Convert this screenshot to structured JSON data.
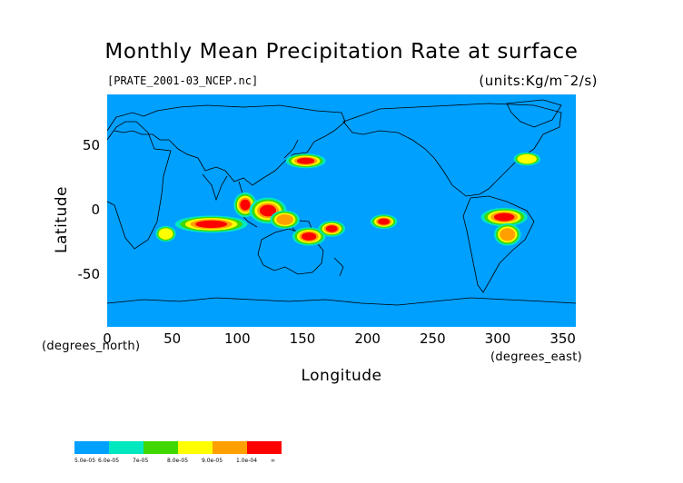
{
  "map": {
    "title": "Monthly Mean Precipitation Rate at surface",
    "source_file": "[PRATE_2001-03_NCEP.nc]",
    "units": "(units:Kg/m¯2/s)",
    "y_axis": {
      "label": "Latitude",
      "unit_note": "(degrees_north)",
      "ticks": [
        "50",
        "0",
        "-50"
      ],
      "tick_values": [
        50,
        0,
        -50
      ],
      "range": [
        -90,
        90
      ]
    },
    "x_axis": {
      "label": "Longitude",
      "unit_note": "(degrees_east)",
      "ticks": [
        "0",
        "50",
        "100",
        "150",
        "200",
        "250",
        "300",
        "350"
      ],
      "tick_values": [
        0,
        50,
        100,
        150,
        200,
        250,
        300,
        350
      ],
      "range": [
        0,
        360
      ]
    },
    "background_color": "#00a0ff",
    "coastline_color": "#000000"
  },
  "chart_data": {
    "type": "heatmap",
    "title": "Monthly Mean Precipitation Rate at surface",
    "xlabel": "Longitude",
    "ylabel": "Latitude",
    "xlim": [
      0,
      360
    ],
    "ylim": [
      -90,
      90
    ],
    "colorbar": {
      "labels": [
        "5.0e-05",
        "6.0e-05",
        "7e-05",
        "8.0e-05",
        "9.0e-05",
        "1.0e-04",
        "∞"
      ],
      "colors": [
        "#00a0ff",
        "#00e8c0",
        "#40d800",
        "#ffff00",
        "#ffa000",
        "#ff0000"
      ]
    },
    "high_precip_regions": [
      {
        "lon": [
          40,
          50
        ],
        "lat": [
          -22,
          -14
        ],
        "level": 3
      },
      {
        "lon": [
          55,
          105
        ],
        "lat": [
          -15,
          -6
        ],
        "level": 5
      },
      {
        "lon": [
          100,
          112
        ],
        "lat": [
          -3,
          12
        ],
        "level": 5
      },
      {
        "lon": [
          112,
          135
        ],
        "lat": [
          -8,
          8
        ],
        "level": 5
      },
      {
        "lon": [
          128,
          145
        ],
        "lat": [
          -12,
          -2
        ],
        "level": 4
      },
      {
        "lon": [
          145,
          165
        ],
        "lat": [
          -25,
          -15
        ],
        "level": 5
      },
      {
        "lon": [
          165,
          180
        ],
        "lat": [
          -18,
          -10
        ],
        "level": 5
      },
      {
        "lon": [
          140,
          165
        ],
        "lat": [
          35,
          42
        ],
        "level": 5
      },
      {
        "lon": [
          205,
          220
        ],
        "lat": [
          -12,
          -5
        ],
        "level": 5
      },
      {
        "lon": [
          290,
          320
        ],
        "lat": [
          -10,
          0
        ],
        "level": 5
      },
      {
        "lon": [
          300,
          315
        ],
        "lat": [
          -25,
          -12
        ],
        "level": 4
      },
      {
        "lon": [
          315,
          330
        ],
        "lat": [
          37,
          43
        ],
        "level": 3
      }
    ]
  }
}
